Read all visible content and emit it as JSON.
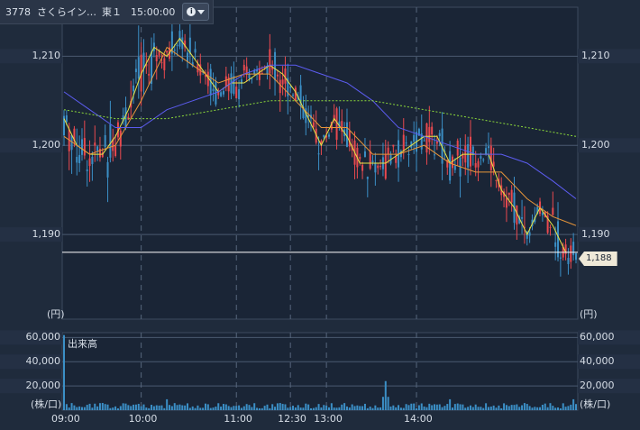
{
  "header": {
    "code": "3778",
    "name": "さくらイン…",
    "market": "東１",
    "time": "15:00:00",
    "info_icon": "info-icon",
    "menu_icon": "caret-down-icon"
  },
  "price_panel": {
    "unit_label": "(円)",
    "current_price": "1,188"
  },
  "volume_panel": {
    "title": "出来高",
    "unit_label": "(株/口)"
  },
  "colors": {
    "background": "#1f2b3c",
    "up": "#e8494f",
    "down": "#3b8fc6",
    "ma_short": "#e7e545",
    "ma_mid": "#e8963a",
    "ma_long": "#5c5cf0",
    "ma_longest": "#8edb3a",
    "price_line": "#ffffff"
  },
  "chart_data": [
    {
      "type": "candlestick",
      "y_ticks": [
        "1,210",
        "1,200",
        "1,190"
      ],
      "y_tick_values": [
        1210,
        1200,
        1190
      ],
      "ylim": [
        1180.5,
        1215.5
      ],
      "current_price": 1188,
      "series": [
        {
          "name": "candles",
          "color_up": "#e8494f",
          "color_down": "#3b8fc6"
        },
        {
          "name": "ma1",
          "color": "#e7e545"
        },
        {
          "name": "ma2",
          "color": "#e8963a"
        },
        {
          "name": "ma3",
          "color": "#5c5cf0"
        },
        {
          "name": "ma4",
          "color": "#8edb3a"
        }
      ],
      "ma_points": {
        "ma1": [
          [
            0,
            1203
          ],
          [
            5,
            1200
          ],
          [
            10,
            1199
          ],
          [
            15,
            1199
          ],
          [
            20,
            1201
          ],
          [
            25,
            1204
          ],
          [
            30,
            1208
          ],
          [
            35,
            1211
          ],
          [
            40,
            1210
          ],
          [
            45,
            1212
          ],
          [
            50,
            1210
          ],
          [
            55,
            1208
          ],
          [
            60,
            1206
          ],
          [
            65,
            1207
          ],
          [
            70,
            1207
          ],
          [
            75,
            1208
          ],
          [
            80,
            1209
          ],
          [
            85,
            1208
          ],
          [
            90,
            1206
          ],
          [
            95,
            1203
          ],
          [
            100,
            1200
          ],
          [
            105,
            1203
          ],
          [
            110,
            1201
          ],
          [
            115,
            1198
          ],
          [
            120,
            1198
          ],
          [
            125,
            1198
          ],
          [
            130,
            1199
          ],
          [
            135,
            1200
          ],
          [
            140,
            1201
          ],
          [
            145,
            1201
          ],
          [
            150,
            1198
          ],
          [
            155,
            1199
          ],
          [
            160,
            1199
          ],
          [
            165,
            1199
          ],
          [
            170,
            1195
          ],
          [
            175,
            1193
          ],
          [
            180,
            1190
          ],
          [
            185,
            1193
          ],
          [
            190,
            1191
          ],
          [
            195,
            1188
          ]
        ],
        "ma2": [
          [
            0,
            1201
          ],
          [
            10,
            1199
          ],
          [
            20,
            1200
          ],
          [
            30,
            1205
          ],
          [
            40,
            1211
          ],
          [
            50,
            1209
          ],
          [
            60,
            1207
          ],
          [
            70,
            1208
          ],
          [
            80,
            1208
          ],
          [
            90,
            1205
          ],
          [
            100,
            1202
          ],
          [
            110,
            1202
          ],
          [
            120,
            1199
          ],
          [
            130,
            1199
          ],
          [
            140,
            1200
          ],
          [
            150,
            1198
          ],
          [
            160,
            1197
          ],
          [
            170,
            1197
          ],
          [
            180,
            1194
          ],
          [
            190,
            1192
          ],
          [
            199,
            1191
          ]
        ],
        "ma3": [
          [
            0,
            1206
          ],
          [
            10,
            1204
          ],
          [
            20,
            1202
          ],
          [
            30,
            1202
          ],
          [
            40,
            1204
          ],
          [
            50,
            1205
          ],
          [
            60,
            1206
          ],
          [
            70,
            1208
          ],
          [
            80,
            1209
          ],
          [
            90,
            1209
          ],
          [
            100,
            1208
          ],
          [
            110,
            1207
          ],
          [
            120,
            1205
          ],
          [
            130,
            1202
          ],
          [
            140,
            1201
          ],
          [
            150,
            1200
          ],
          [
            160,
            1199
          ],
          [
            170,
            1199
          ],
          [
            180,
            1198
          ],
          [
            190,
            1196
          ],
          [
            199,
            1194
          ]
        ],
        "ma4": [
          [
            0,
            1204
          ],
          [
            20,
            1203
          ],
          [
            40,
            1203
          ],
          [
            60,
            1204
          ],
          [
            80,
            1205
          ],
          [
            100,
            1205
          ],
          [
            120,
            1205
          ],
          [
            140,
            1204
          ],
          [
            160,
            1203
          ],
          [
            180,
            1202
          ],
          [
            199,
            1201
          ]
        ]
      }
    },
    {
      "type": "bar",
      "title": "出来高",
      "y_ticks": [
        "60,000",
        "40,000",
        "20,000"
      ],
      "y_tick_values": [
        60000,
        40000,
        20000
      ],
      "ylim": [
        0,
        64000
      ],
      "x_ticks": [
        "09:00",
        "10:00",
        "11:00",
        "12:30",
        "13:00",
        "14:00"
      ],
      "x_tick_positions": [
        0,
        30,
        67,
        88,
        102,
        137
      ],
      "x_max": 199,
      "series": [
        {
          "name": "volume",
          "color": "#3b8fc6"
        }
      ]
    }
  ]
}
